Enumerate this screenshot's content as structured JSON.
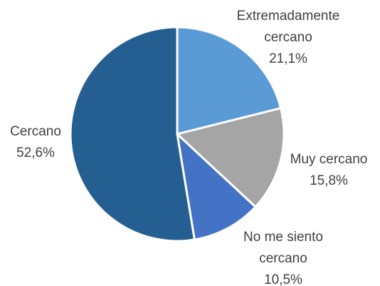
{
  "chart_data": {
    "type": "pie",
    "categories": [
      "Extremadamente cercano",
      "Muy cercano",
      "No me siento cercano",
      "Cercano"
    ],
    "values": [
      21.1,
      15.8,
      10.5,
      52.6
    ],
    "value_labels": [
      "21,1%",
      "15,8%",
      "10,5%",
      "52,6%"
    ],
    "colors": [
      "#5b9bd5",
      "#a5a5a5",
      "#4472c4",
      "#255e91"
    ]
  }
}
